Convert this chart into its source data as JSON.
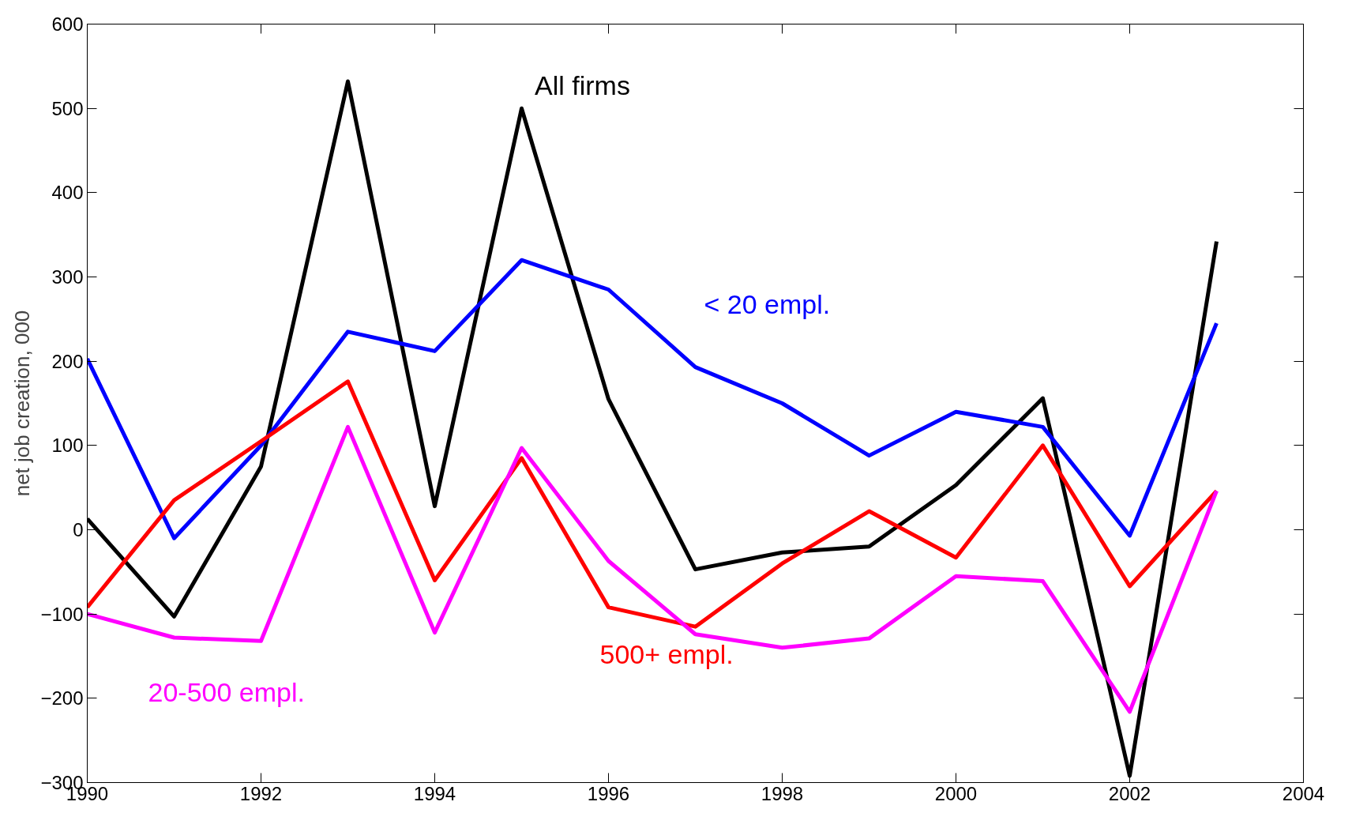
{
  "chart_data": {
    "type": "line",
    "ylabel": "net job creation, 000",
    "x": [
      1990,
      1991,
      1992,
      1993,
      1994,
      1995,
      1996,
      1997,
      1998,
      1999,
      2000,
      2001,
      2002,
      2003
    ],
    "series": [
      {
        "name": "All firms",
        "color": "#000000",
        "values": [
          13,
          -103,
          75,
          532,
          28,
          500,
          155,
          -47,
          -27,
          -20,
          53,
          156,
          -292,
          342
        ]
      },
      {
        "name": "< 20 empl.",
        "color": "#0000ff",
        "values": [
          203,
          -10,
          100,
          235,
          212,
          320,
          285,
          193,
          150,
          88,
          140,
          122,
          -7,
          245
        ]
      },
      {
        "name": "500+ empl.",
        "color": "#ff0000",
        "values": [
          -92,
          35,
          105,
          176,
          -60,
          85,
          -92,
          -115,
          -40,
          22,
          -33,
          100,
          -67,
          46
        ]
      },
      {
        "name": "20-500 empl.",
        "color": "#ff00ff",
        "values": [
          -100,
          -128,
          -132,
          122,
          -122,
          97,
          -37,
          -124,
          -140,
          -129,
          -55,
          -61,
          -216,
          46
        ]
      }
    ],
    "xlim": [
      1990,
      2004
    ],
    "xticks": [
      1990,
      1992,
      1994,
      1996,
      1998,
      2000,
      2002,
      2004
    ],
    "ylim": [
      -300,
      600
    ],
    "yticks": [
      -300,
      -200,
      -100,
      0,
      100,
      200,
      300,
      400,
      500,
      600
    ],
    "grid": false,
    "marker": "none",
    "line_style": "solid"
  }
}
